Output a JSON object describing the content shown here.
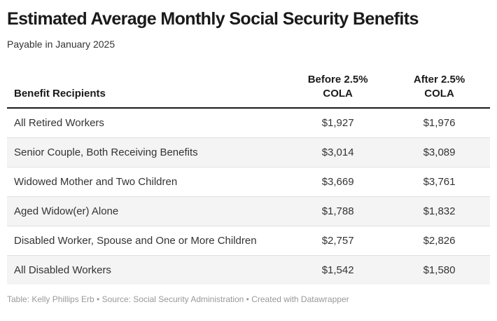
{
  "header": {
    "title": "Estimated Average Monthly Social Security Benefits",
    "subtitle": "Payable in January 2025"
  },
  "table": {
    "columns": [
      {
        "label": "Benefit Recipients"
      },
      {
        "label": "Before 2.5%\nCOLA"
      },
      {
        "label": "After 2.5%\nCOLA"
      }
    ],
    "rows": [
      {
        "recipient": "All Retired Workers",
        "before": "$1,927",
        "after": "$1,976"
      },
      {
        "recipient": "Senior Couple, Both Receiving Benefits",
        "before": "$3,014",
        "after": "$3,089"
      },
      {
        "recipient": "Widowed Mother and Two Children",
        "before": "$3,669",
        "after": "$3,761"
      },
      {
        "recipient": "Aged Widow(er) Alone",
        "before": "$1,788",
        "after": "$1,832"
      },
      {
        "recipient": "Disabled Worker, Spouse and One or More Children",
        "before": "$2,757",
        "after": "$2,826"
      },
      {
        "recipient": "All Disabled Workers",
        "before": "$1,542",
        "after": "$1,580"
      }
    ]
  },
  "footer": {
    "text": "Table: Kelly Phillips Erb • Source: Social Security Administration • Created with Datawrapper"
  },
  "colors": {
    "title_text": "#1a1a1a",
    "body_text": "#333333",
    "zebra_stripe": "#f4f4f4",
    "row_divider": "#e0e0e0",
    "header_rule": "#1a1a1a",
    "footer_text": "#999999",
    "background": "#ffffff"
  },
  "chart_data": {
    "type": "table",
    "title": "Estimated Average Monthly Social Security Benefits",
    "subtitle": "Payable in January 2025",
    "columns": [
      "Benefit Recipients",
      "Before 2.5% COLA",
      "After 2.5% COLA"
    ],
    "rows": [
      [
        "All Retired Workers",
        1927,
        1976
      ],
      [
        "Senior Couple, Both Receiving Benefits",
        3014,
        3089
      ],
      [
        "Widowed Mother and Two Children",
        3669,
        3761
      ],
      [
        "Aged Widow(er) Alone",
        1788,
        1832
      ],
      [
        "Disabled Worker, Spouse and One or More Children",
        2757,
        2826
      ],
      [
        "All Disabled Workers",
        1542,
        1580
      ]
    ],
    "units": "USD per month",
    "footer": "Table: Kelly Phillips Erb • Source: Social Security Administration • Created with Datawrapper",
    "layout_hints": {
      "zebra_striping": true,
      "value_alignment": "center",
      "header_rule": "2px solid black"
    }
  }
}
